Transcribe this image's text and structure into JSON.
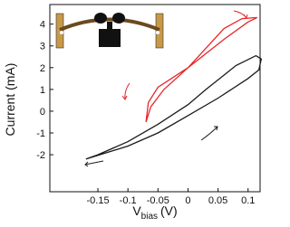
{
  "chart_data": {
    "type": "line",
    "ylabel": "Current (mA)",
    "xlabel": "V",
    "xlabel_sub": "bias",
    "xlabel_unit": "(V)",
    "xlim": [
      -0.23,
      0.12
    ],
    "ylim": [
      -3.7,
      4.9
    ],
    "xticks": [
      -0.15,
      -0.1,
      -0.05,
      0,
      0.05,
      0.1
    ],
    "yticks": [
      -2,
      -1,
      0,
      1,
      2,
      3,
      4
    ],
    "series": [
      {
        "color": "#e8262b",
        "x": [
          -0.07,
          -0.066,
          -0.05,
          0,
          0.06,
          0.1,
          0.115,
          0.09,
          0.06,
          0.02,
          0,
          -0.04,
          -0.062,
          -0.07
        ],
        "values": [
          -0.5,
          0.4,
          1.1,
          2.0,
          3.3,
          4.1,
          4.3,
          4.25,
          3.8,
          2.6,
          2.0,
          1.0,
          0.2,
          -0.5
        ]
      },
      {
        "color": "#1a1a1a",
        "x": [
          -0.17,
          -0.1,
          -0.05,
          0,
          0.05,
          0.1,
          0.118,
          0.122,
          0.113,
          0.08,
          0.03,
          0,
          -0.05,
          -0.1,
          -0.15,
          -0.17
        ],
        "values": [
          -2.2,
          -1.6,
          -1.0,
          -0.2,
          0.6,
          1.5,
          1.9,
          2.4,
          2.55,
          2.1,
          1.0,
          0.3,
          -0.6,
          -1.4,
          -2.0,
          -2.2
        ]
      }
    ]
  }
}
